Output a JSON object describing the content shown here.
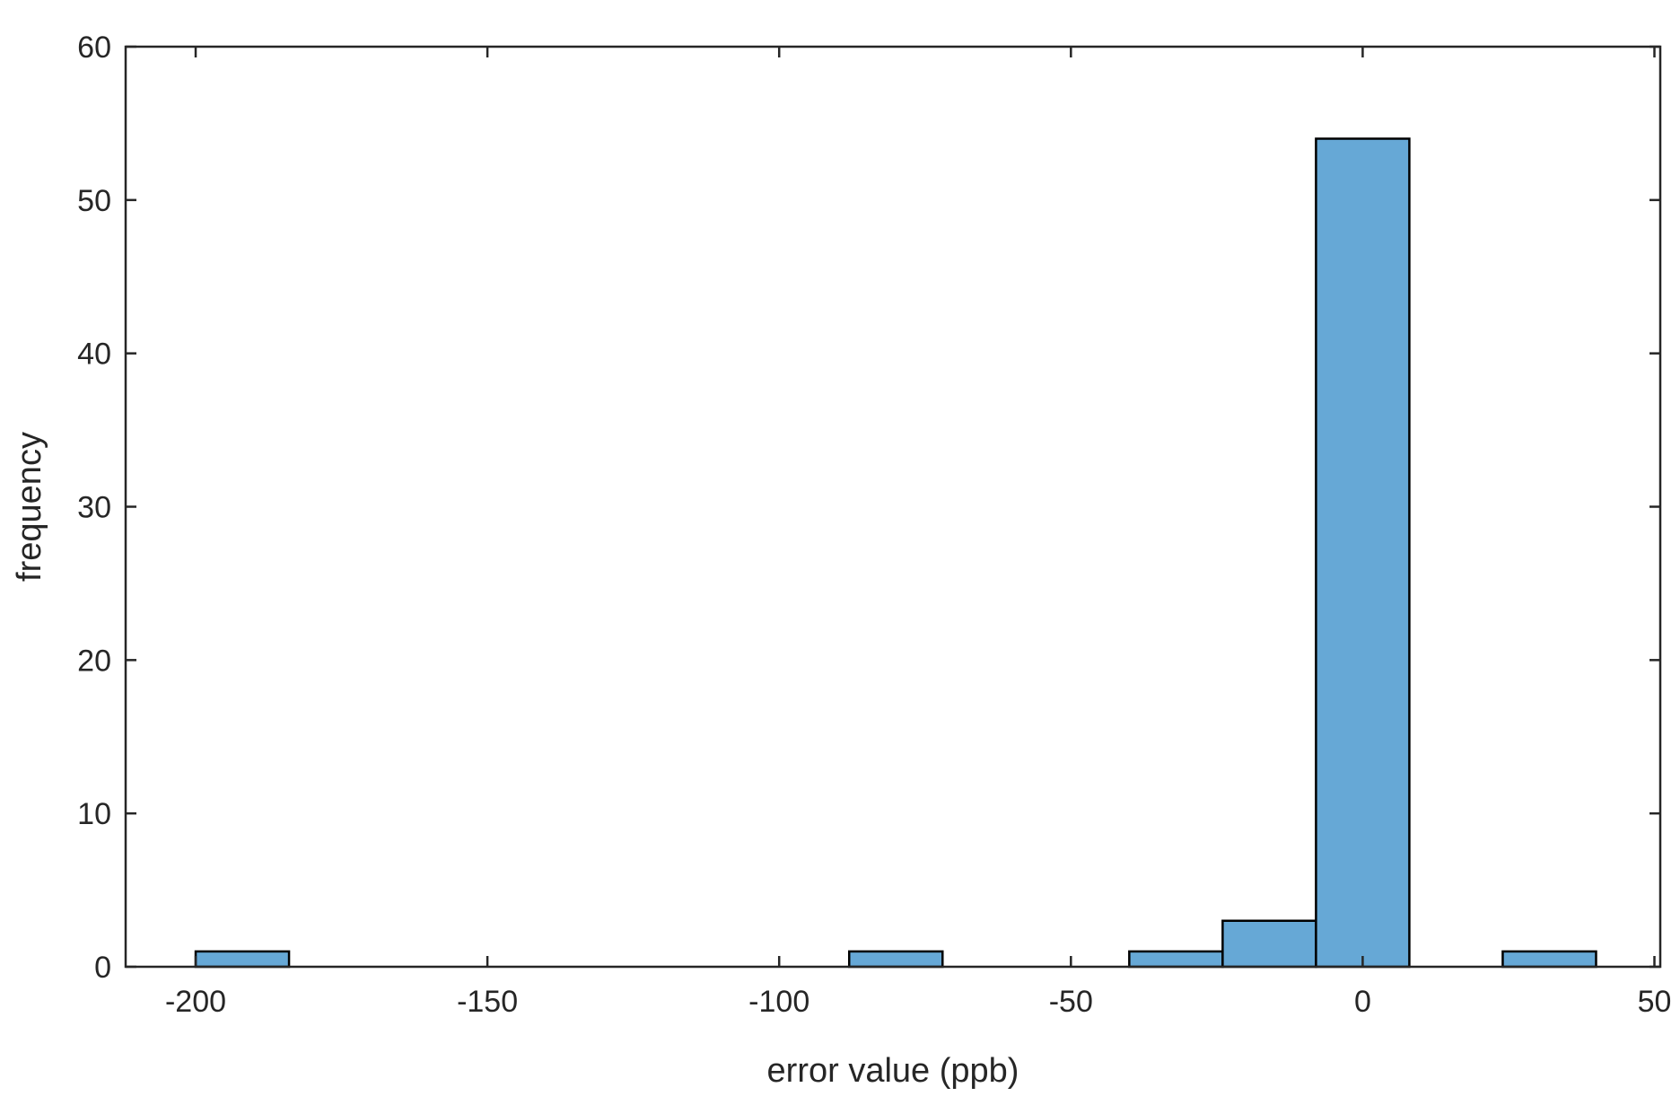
{
  "chart_data": {
    "type": "bar",
    "title": "",
    "xlabel": "error value (ppb)",
    "ylabel": "frequency",
    "xlim": [
      -212,
      51
    ],
    "ylim": [
      0,
      60
    ],
    "xticks": [
      -200,
      -150,
      -100,
      -50,
      0,
      50
    ],
    "xtick_labels": [
      "-200",
      "-150",
      "-100",
      "-50",
      "0",
      "50"
    ],
    "yticks": [
      0,
      10,
      20,
      30,
      40,
      50,
      60
    ],
    "ytick_labels": [
      "0",
      "10",
      "20",
      "30",
      "40",
      "50",
      "60"
    ],
    "grid": false,
    "bar_color": "#66a8d6",
    "bar_edge_color": "#000000",
    "bins": [
      {
        "x0": -200,
        "x1": -184,
        "count": 1
      },
      {
        "x0": -88,
        "x1": -72,
        "count": 1
      },
      {
        "x0": -40,
        "x1": -24,
        "count": 1
      },
      {
        "x0": -24,
        "x1": -8,
        "count": 3
      },
      {
        "x0": -8,
        "x1": 8,
        "count": 54
      },
      {
        "x0": 24,
        "x1": 40,
        "count": 1
      }
    ]
  }
}
